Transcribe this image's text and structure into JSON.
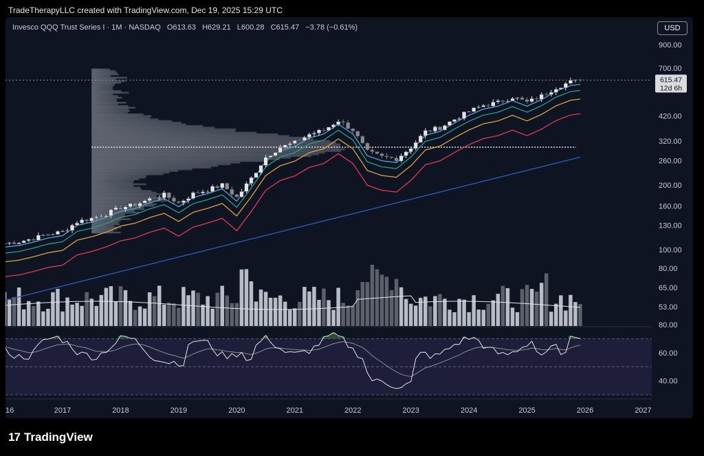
{
  "credit": "TradeTherapyLLC created with TradingView.com, Dec 19, 2025 15:29 UTC",
  "symbol": {
    "name": "Invesco QQQ Trust Series I · 1M · NASDAQ",
    "open": "O613.63",
    "high": "H629.21",
    "low": "L600.28",
    "close": "C615.47",
    "change": "−3.78 (−0.61%)"
  },
  "currency_label": "USD",
  "price_badge": {
    "price": "615.47",
    "countdown": "12d 6h"
  },
  "brand": {
    "logo_mark": "17",
    "logo_text": "TradingView"
  },
  "colors": {
    "background": "#0f1422",
    "candle_up": "#e6e6e6",
    "candle_down": "#8a8a8a",
    "ma_fast": "#4fa3d9",
    "ma_mid": "#2a9d8f",
    "ma_slow": "#d9a441",
    "ma_long": "#e03a57",
    "ma_xlong": "#2c5fb8",
    "rsi_band": "#1e1d3a",
    "rsi_line": "#e6e6e6",
    "rsi_overbought_fill": "#3a7a3a"
  },
  "chart_data": {
    "type": "candlestick",
    "scale": "log",
    "price_axis": [
      "900.00",
      "700.00",
      "420.00",
      "320.00",
      "260.00",
      "200.00",
      "160.00",
      "130.00",
      "100.00"
    ],
    "volume_axis": [
      "80.00",
      "65.00",
      "53.00"
    ],
    "rsi_axis": [
      "80.00",
      "60.00",
      "40.00"
    ],
    "x_labels": [
      "16",
      "2017",
      "2018",
      "2019",
      "2020",
      "2021",
      "2022",
      "2023",
      "2024",
      "2025",
      "2026",
      "2027"
    ],
    "ylim": [
      78,
      1000
    ],
    "rsi_levels": [
      70,
      50,
      30
    ],
    "point_of_control": 300,
    "last_close": 615.47,
    "quarterly_close": [
      {
        "t": "2016.0",
        "v": 107
      },
      {
        "t": "2016.25",
        "v": 109
      },
      {
        "t": "2016.5",
        "v": 113
      },
      {
        "t": "2016.75",
        "v": 118
      },
      {
        "t": "2017.0",
        "v": 121
      },
      {
        "t": "2017.25",
        "v": 135
      },
      {
        "t": "2017.5",
        "v": 140
      },
      {
        "t": "2017.75",
        "v": 147
      },
      {
        "t": "2018.0",
        "v": 157
      },
      {
        "t": "2018.25",
        "v": 162
      },
      {
        "t": "2018.5",
        "v": 172
      },
      {
        "t": "2018.75",
        "v": 180
      },
      {
        "t": "2019.0",
        "v": 165
      },
      {
        "t": "2019.25",
        "v": 182
      },
      {
        "t": "2019.5",
        "v": 190
      },
      {
        "t": "2019.75",
        "v": 200
      },
      {
        "t": "2020.0",
        "v": 175
      },
      {
        "t": "2020.25",
        "v": 215
      },
      {
        "t": "2020.5",
        "v": 270
      },
      {
        "t": "2020.75",
        "v": 300
      },
      {
        "t": "2021.0",
        "v": 315
      },
      {
        "t": "2021.25",
        "v": 345
      },
      {
        "t": "2021.5",
        "v": 360
      },
      {
        "t": "2021.75",
        "v": 400
      },
      {
        "t": "2022.0",
        "v": 360
      },
      {
        "t": "2022.25",
        "v": 285
      },
      {
        "t": "2022.5",
        "v": 270
      },
      {
        "t": "2022.75",
        "v": 265
      },
      {
        "t": "2023.0",
        "v": 300
      },
      {
        "t": "2023.25",
        "v": 355
      },
      {
        "t": "2023.5",
        "v": 370
      },
      {
        "t": "2023.75",
        "v": 405
      },
      {
        "t": "2024.0",
        "v": 440
      },
      {
        "t": "2024.25",
        "v": 470
      },
      {
        "t": "2024.5",
        "v": 485
      },
      {
        "t": "2024.75",
        "v": 515
      },
      {
        "t": "2025.0",
        "v": 485
      },
      {
        "t": "2025.25",
        "v": 520
      },
      {
        "t": "2025.5",
        "v": 570
      },
      {
        "t": "2025.75",
        "v": 605
      },
      {
        "t": "2025.96",
        "v": 615
      }
    ]
  }
}
